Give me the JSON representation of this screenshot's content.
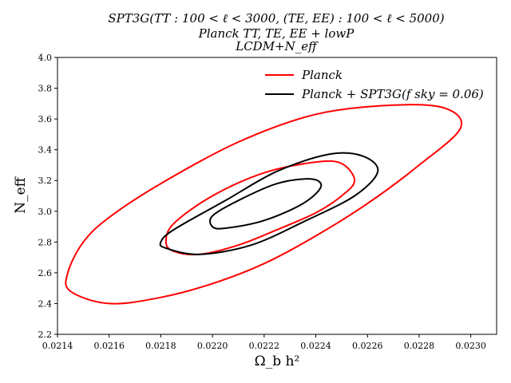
{
  "chart_data": {
    "type": "contour",
    "title": [
      "SPT3G(TT : 100 < ℓ < 3000, (TE, EE) : 100 < ℓ < 5000)",
      "Planck TT, TE, EE + lowP",
      "LCDM+N_eff"
    ],
    "xlabel": "Ω_b h²",
    "ylabel": "N_eff",
    "xlim": [
      0.0214,
      0.0231
    ],
    "ylim": [
      2.2,
      4.0
    ],
    "x_ticks": [
      "0.0214",
      "0.0216",
      "0.0218",
      "0.0220",
      "0.0222",
      "0.0224",
      "0.0226",
      "0.0228",
      "0.0230"
    ],
    "y_ticks": [
      "2.2",
      "2.4",
      "2.6",
      "2.8",
      "3.0",
      "3.2",
      "3.4",
      "3.6",
      "3.8",
      "4.0"
    ],
    "legend_position": "top-right",
    "series": [
      {
        "name": "Planck",
        "color": "#ff0000",
        "contours": [
          [
            [
              0.02185,
              2.74
            ],
            [
              0.02195,
              2.72
            ],
            [
              0.0221,
              2.78
            ],
            [
              0.02225,
              2.88
            ],
            [
              0.0224,
              2.99
            ],
            [
              0.0225,
              3.1
            ],
            [
              0.02255,
              3.2
            ],
            [
              0.0225,
              3.31
            ],
            [
              0.0224,
              3.32
            ],
            [
              0.0222,
              3.25
            ],
            [
              0.022,
              3.1
            ],
            [
              0.02185,
              2.92
            ],
            [
              0.02182,
              2.8
            ]
          ],
          [
            [
              0.02145,
              2.48
            ],
            [
              0.0216,
              2.4
            ],
            [
              0.0218,
              2.44
            ],
            [
              0.022,
              2.53
            ],
            [
              0.0222,
              2.66
            ],
            [
              0.0224,
              2.84
            ],
            [
              0.0226,
              3.05
            ],
            [
              0.0228,
              3.3
            ],
            [
              0.02296,
              3.54
            ],
            [
              0.0229,
              3.67
            ],
            [
              0.0227,
              3.69
            ],
            [
              0.0224,
              3.63
            ],
            [
              0.0221,
              3.45
            ],
            [
              0.0218,
              3.18
            ],
            [
              0.0216,
              2.96
            ],
            [
              0.0215,
              2.8
            ],
            [
              0.02144,
              2.6
            ]
          ]
        ]
      },
      {
        "name": "Planck + SPT3G(f sky = 0.06)",
        "color": "#000000",
        "contours": [
          [
            [
              0.022,
              2.9
            ],
            [
              0.02205,
              2.89
            ],
            [
              0.0222,
              2.94
            ],
            [
              0.02235,
              3.05
            ],
            [
              0.02242,
              3.16
            ],
            [
              0.02238,
              3.21
            ],
            [
              0.02225,
              3.18
            ],
            [
              0.0221,
              3.07
            ],
            [
              0.022,
              2.97
            ]
          ],
          [
            [
              0.02182,
              2.76
            ],
            [
              0.02195,
              2.72
            ],
            [
              0.02215,
              2.78
            ],
            [
              0.02235,
              2.93
            ],
            [
              0.02255,
              3.1
            ],
            [
              0.02264,
              3.26
            ],
            [
              0.02258,
              3.36
            ],
            [
              0.02245,
              3.37
            ],
            [
              0.02225,
              3.26
            ],
            [
              0.02205,
              3.07
            ],
            [
              0.02185,
              2.88
            ],
            [
              0.0218,
              2.8
            ]
          ]
        ]
      }
    ]
  }
}
